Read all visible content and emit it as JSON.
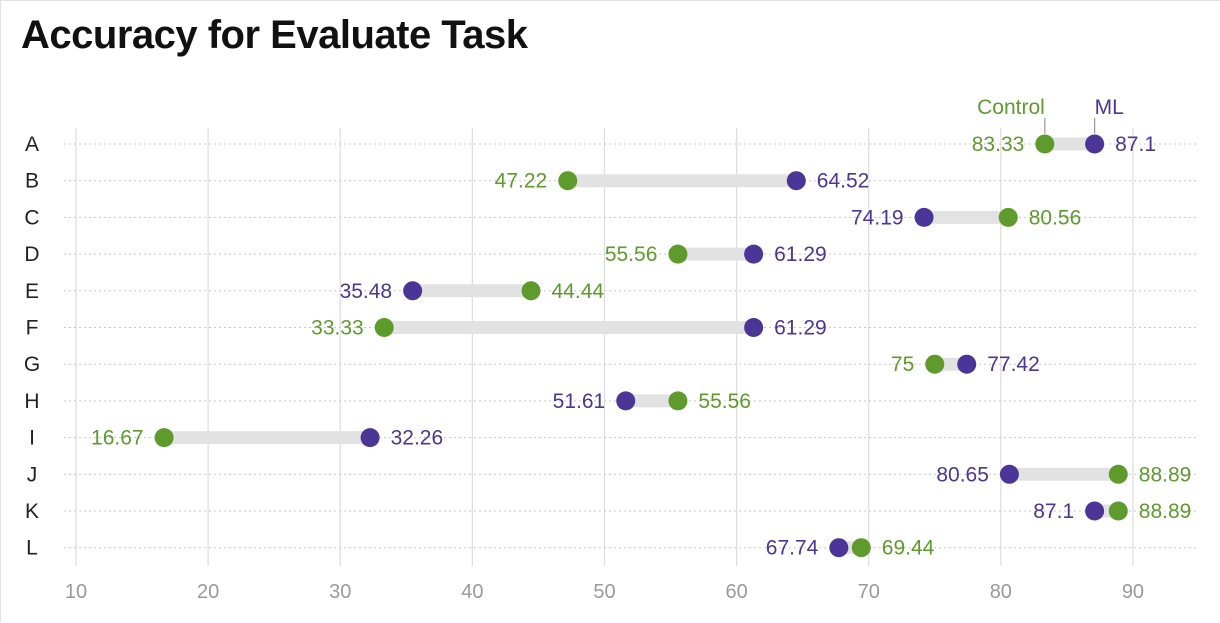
{
  "chart_data": {
    "type": "dot-plot",
    "title": "Accuracy for Evaluate Task",
    "xlim": [
      10,
      95
    ],
    "x_ticks": [
      10,
      20,
      30,
      40,
      50,
      60,
      70,
      80,
      90
    ],
    "grid": true,
    "legend_placement": "top-right",
    "categories": [
      "A",
      "B",
      "C",
      "D",
      "E",
      "F",
      "G",
      "H",
      "I",
      "J",
      "K",
      "L"
    ],
    "series": [
      {
        "name": "Control",
        "color": "#5e9a2c",
        "values": [
          83.33,
          47.22,
          80.56,
          55.56,
          44.44,
          33.33,
          75,
          55.56,
          16.67,
          88.89,
          88.89,
          69.44
        ],
        "labels": [
          "83.33",
          "47.22",
          "80.56",
          "55.56",
          "44.44",
          "33.33",
          "75",
          "55.56",
          "16.67",
          "88.89",
          "88.89",
          "69.44"
        ]
      },
      {
        "name": "ML",
        "color": "#4b3596",
        "values": [
          87.1,
          64.52,
          74.19,
          61.29,
          35.48,
          61.29,
          77.42,
          51.61,
          32.26,
          80.65,
          87.1,
          67.74
        ],
        "labels": [
          "87.1",
          "64.52",
          "74.19",
          "61.29",
          "35.48",
          "61.29",
          "77.42",
          "51.61",
          "32.26",
          "80.65",
          "87.1",
          "67.74"
        ]
      }
    ],
    "connector_color": "#e2e2e2",
    "gridline_color": "#dddddd",
    "tick_label_color": "#9a9a9a",
    "category_label_color": "#222222"
  }
}
